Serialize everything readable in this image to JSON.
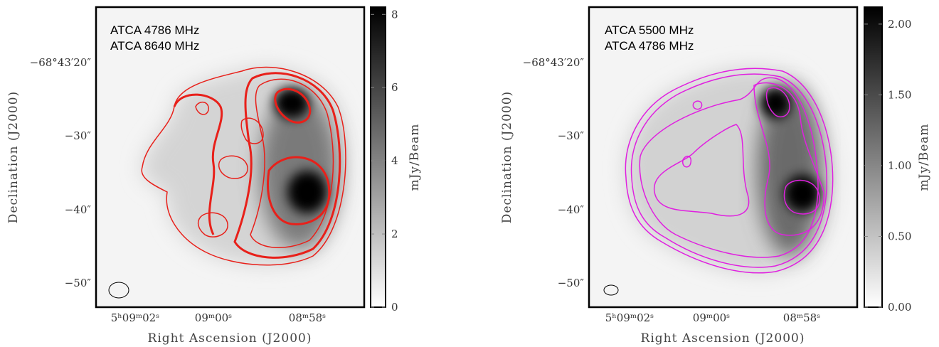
{
  "panels": [
    {
      "labels": [
        "ATCA 4786 MHz",
        "ATCA 8640 MHz"
      ],
      "x_axis_label": "Right Ascension (J2000)",
      "y_axis_label": "Declination (J2000)",
      "x_ticks": [
        "5ʰ09ᵐ02ˢ",
        "09ᵐ00ˢ",
        "08ᵐ58ˢ"
      ],
      "y_ticks": [
        "−68°43′20″",
        "−30″",
        "−40″",
        "−50″"
      ],
      "colorbar": {
        "label": "mJy/Beam",
        "lim": [
          0,
          8.2
        ],
        "ticks": [
          0,
          2,
          4,
          6,
          8
        ]
      }
    },
    {
      "labels": [
        "ATCA 5500 MHz",
        "ATCA 4786 MHz"
      ],
      "x_axis_label": "Right Ascension (J2000)",
      "y_axis_label": "Declination (J2000)",
      "x_ticks": [
        "5ʰ09ᵐ02ˢ",
        "09ᵐ00ˢ",
        "08ᵐ58ˢ"
      ],
      "y_ticks": [
        "−68°43′20″",
        "−30″",
        "−40″",
        "−50″"
      ],
      "colorbar": {
        "label": "mJy/Beam",
        "lim": [
          0,
          2.12
        ],
        "ticks": [
          {
            "value": 0,
            "label": "0.00"
          },
          {
            "value": 0.5,
            "label": "0.50"
          },
          {
            "value": 1,
            "label": "1.00"
          },
          {
            "value": 1.5,
            "label": "1.50"
          },
          {
            "value": 2,
            "label": "2.00"
          }
        ]
      }
    }
  ]
}
